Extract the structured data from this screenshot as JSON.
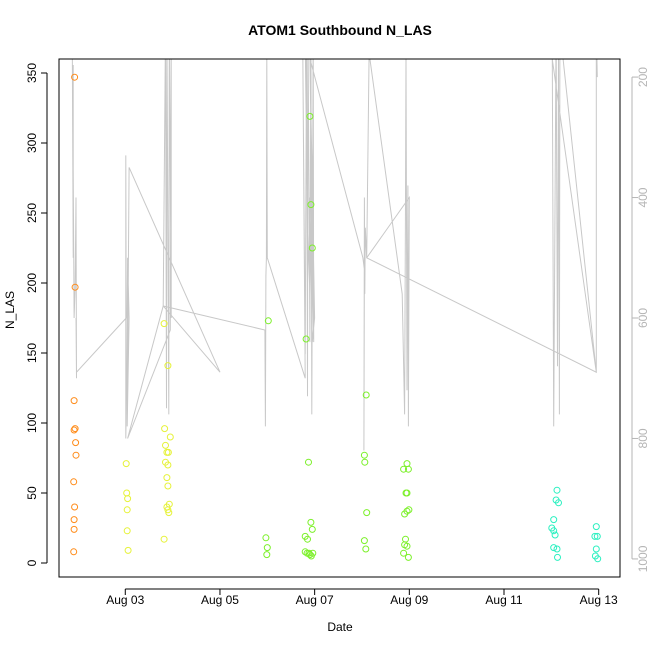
{
  "chart_data": {
    "type": "scatter",
    "title": "ATOM1 Southbound N_LAS",
    "xlabel": "Date",
    "ylabel": "N_LAS",
    "xlim": [
      1.6,
      13.45
    ],
    "ylim": [
      -10,
      360
    ],
    "y2lim": [
      1030,
      170
    ],
    "x_ticks": [
      {
        "value": 3,
        "label": "Aug 03"
      },
      {
        "value": 5,
        "label": "Aug 05"
      },
      {
        "value": 7,
        "label": "Aug 07"
      },
      {
        "value": 9,
        "label": "Aug 09"
      },
      {
        "value": 11,
        "label": "Aug 11"
      },
      {
        "value": 13,
        "label": "Aug 13"
      }
    ],
    "y_ticks": [
      0,
      50,
      100,
      150,
      200,
      250,
      300,
      350
    ],
    "y2_ticks": [
      200,
      400,
      600,
      800,
      1000
    ],
    "grid": false,
    "colors": {
      "line": "#c8c8c8",
      "right_axis": "#b5b5b5",
      "axis": "#000000"
    },
    "series": [
      {
        "color": "#ff8c1a",
        "points": [
          [
            1.93,
            347
          ],
          [
            1.94,
            197
          ],
          [
            1.92,
            116
          ],
          [
            1.92,
            95
          ],
          [
            1.94,
            96
          ],
          [
            1.95,
            86
          ],
          [
            1.96,
            77
          ],
          [
            1.91,
            58
          ],
          [
            1.93,
            40
          ],
          [
            1.92,
            31
          ],
          [
            1.92,
            24
          ],
          [
            1.91,
            8
          ]
        ]
      },
      {
        "color": "#e6f23a",
        "points": [
          [
            3.02,
            71
          ],
          [
            3.03,
            50
          ],
          [
            3.05,
            46
          ],
          [
            3.04,
            38
          ],
          [
            3.04,
            23
          ],
          [
            3.06,
            9
          ],
          [
            3.82,
            171
          ],
          [
            3.9,
            141
          ],
          [
            3.83,
            96
          ],
          [
            3.95,
            90
          ],
          [
            3.85,
            84
          ],
          [
            3.88,
            79
          ],
          [
            3.91,
            79
          ],
          [
            3.85,
            72
          ],
          [
            3.9,
            70
          ],
          [
            3.88,
            61
          ],
          [
            3.9,
            55
          ],
          [
            3.93,
            42
          ],
          [
            3.88,
            40
          ],
          [
            3.9,
            38
          ],
          [
            3.92,
            36
          ],
          [
            3.82,
            17
          ]
        ]
      },
      {
        "color": "#7cf02a",
        "points": [
          [
            6.02,
            173
          ],
          [
            5.97,
            18
          ],
          [
            6.0,
            11
          ],
          [
            5.99,
            6
          ],
          [
            6.82,
            160
          ],
          [
            6.9,
            319
          ],
          [
            6.92,
            256
          ],
          [
            6.95,
            225
          ],
          [
            6.87,
            72
          ],
          [
            6.92,
            29
          ],
          [
            6.95,
            24
          ],
          [
            6.8,
            19
          ],
          [
            6.85,
            17
          ],
          [
            6.8,
            8
          ],
          [
            6.84,
            7
          ],
          [
            6.88,
            7
          ],
          [
            6.9,
            6
          ],
          [
            6.93,
            5
          ],
          [
            6.96,
            7
          ],
          [
            8.09,
            120
          ],
          [
            8.05,
            77
          ],
          [
            8.06,
            72
          ],
          [
            8.1,
            36
          ],
          [
            8.05,
            16
          ],
          [
            8.08,
            10
          ],
          [
            8.88,
            67
          ],
          [
            8.95,
            71
          ],
          [
            8.98,
            67
          ],
          [
            8.93,
            50
          ],
          [
            8.95,
            50
          ],
          [
            8.95,
            37
          ],
          [
            8.99,
            38
          ],
          [
            8.9,
            35
          ],
          [
            8.92,
            17
          ],
          [
            8.9,
            13
          ],
          [
            8.95,
            12
          ],
          [
            8.88,
            7
          ],
          [
            8.98,
            4
          ]
        ]
      },
      {
        "color": "#2af0c0",
        "points": [
          [
            12.05,
            31
          ],
          [
            12.01,
            25
          ],
          [
            12.05,
            23
          ],
          [
            12.1,
            45
          ],
          [
            12.12,
            52
          ],
          [
            12.15,
            43
          ],
          [
            12.08,
            20
          ],
          [
            12.05,
            11
          ],
          [
            12.12,
            10
          ],
          [
            12.13,
            4
          ],
          [
            12.95,
            26
          ],
          [
            12.92,
            19
          ],
          [
            12.97,
            19
          ],
          [
            12.95,
            10
          ],
          [
            12.93,
            5
          ],
          [
            12.98,
            3
          ]
        ]
      }
    ],
    "line_series": {
      "color": "#c8c8c8",
      "axis": "right",
      "points": [
        [
          1.88,
          150
        ],
        [
          1.9,
          500
        ],
        [
          1.9,
          180
        ],
        [
          1.9,
          350
        ],
        [
          1.92,
          600
        ],
        [
          1.94,
          550
        ],
        [
          1.96,
          400
        ],
        [
          1.97,
          700
        ],
        [
          1.96,
          600
        ],
        [
          1.97,
          690
        ],
        [
          3.02,
          600
        ],
        [
          3.01,
          330
        ],
        [
          3.01,
          800
        ],
        [
          3.03,
          700
        ],
        [
          3.05,
          500
        ],
        [
          3.08,
          600
        ],
        [
          3.04,
          780
        ],
        [
          3.08,
          350
        ],
        [
          5.0,
          690
        ],
        [
          3.8,
          580
        ],
        [
          3.85,
          120
        ],
        [
          3.87,
          750
        ],
        [
          3.88,
          120
        ],
        [
          3.92,
          760
        ],
        [
          3.93,
          120
        ],
        [
          3.97,
          600
        ],
        [
          3.97,
          120
        ],
        [
          3.95,
          620
        ],
        [
          3.05,
          800
        ],
        [
          3.8,
          580
        ],
        [
          5.95,
          620
        ],
        [
          5.96,
          780
        ],
        [
          5.97,
          530
        ],
        [
          5.98,
          500
        ],
        [
          5.99,
          160
        ],
        [
          6.0,
          500
        ],
        [
          6.8,
          700
        ],
        [
          6.75,
          160
        ],
        [
          6.8,
          660
        ],
        [
          6.83,
          120
        ],
        [
          6.85,
          730
        ],
        [
          6.86,
          120
        ],
        [
          6.9,
          640
        ],
        [
          6.92,
          120
        ],
        [
          6.94,
          760
        ],
        [
          6.97,
          120
        ],
        [
          6.98,
          640
        ],
        [
          6.9,
          160
        ],
        [
          7.0,
          600
        ],
        [
          6.95,
          640
        ],
        [
          6.9,
          400
        ],
        [
          6.9,
          560
        ],
        [
          6.85,
          450
        ],
        [
          6.8,
          140
        ],
        [
          8.02,
          500
        ],
        [
          8.05,
          520
        ],
        [
          8.04,
          820
        ],
        [
          8.05,
          400
        ],
        [
          8.06,
          560
        ],
        [
          8.07,
          450
        ],
        [
          8.1,
          500
        ],
        [
          8.15,
          160
        ],
        [
          8.85,
          560
        ],
        [
          8.9,
          760
        ],
        [
          8.92,
          400
        ],
        [
          8.93,
          160
        ],
        [
          8.95,
          720
        ],
        [
          8.97,
          380
        ],
        [
          8.98,
          780
        ],
        [
          9.0,
          400
        ],
        [
          8.1,
          500
        ],
        [
          12.95,
          690
        ],
        [
          12.0,
          160
        ],
        [
          12.02,
          170
        ],
        [
          12.05,
          780
        ],
        [
          12.07,
          500
        ],
        [
          12.1,
          120
        ],
        [
          12.13,
          680
        ],
        [
          12.15,
          160
        ],
        [
          12.17,
          760
        ],
        [
          12.18,
          120
        ],
        [
          12.95,
          690
        ],
        [
          12.95,
          120
        ],
        [
          12.97,
          200
        ]
      ]
    }
  }
}
